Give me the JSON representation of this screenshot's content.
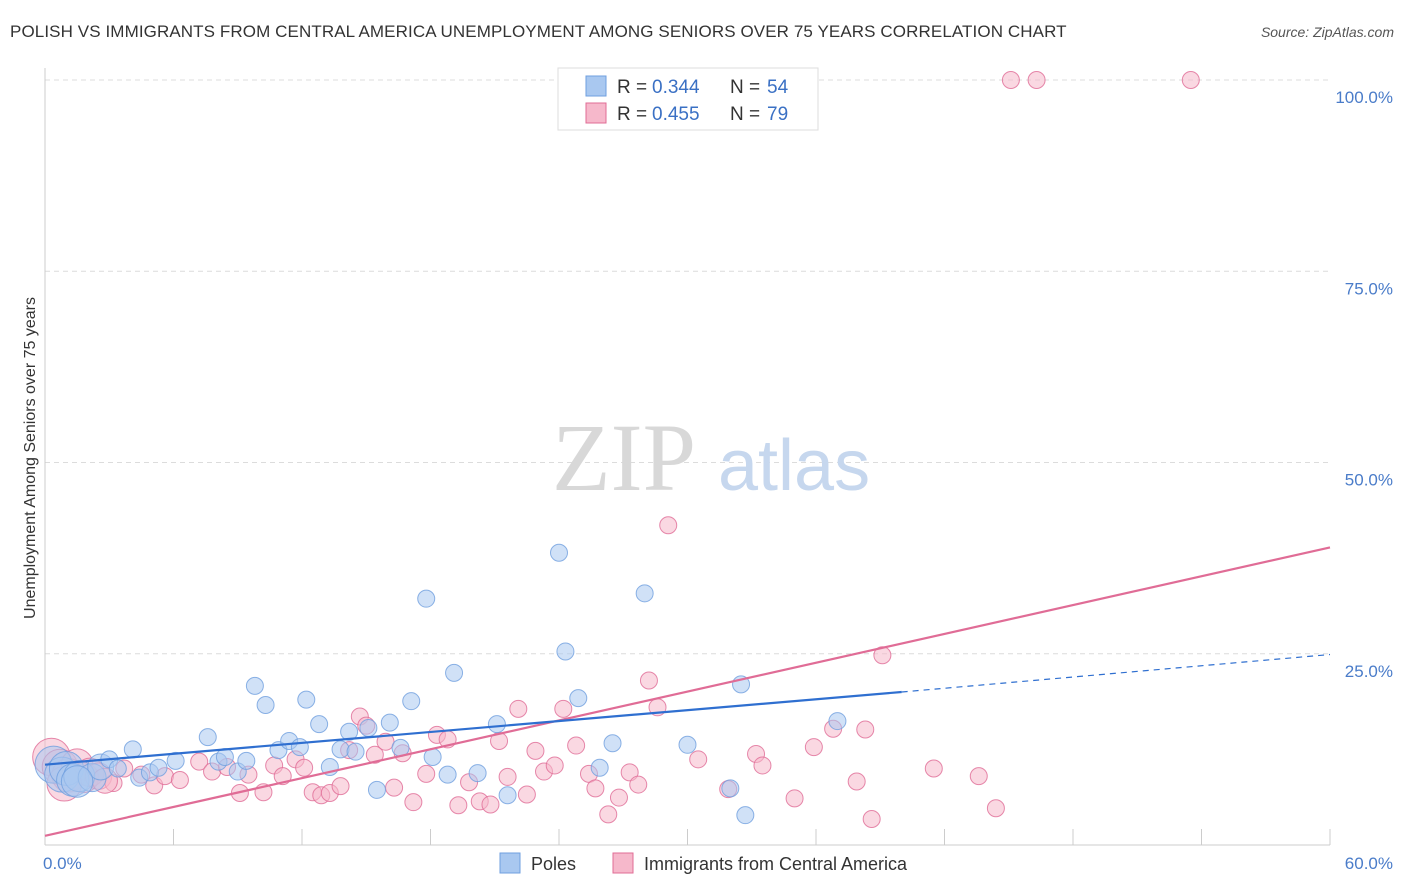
{
  "title": "POLISH VS IMMIGRANTS FROM CENTRAL AMERICA UNEMPLOYMENT AMONG SENIORS OVER 75 YEARS CORRELATION CHART",
  "source": "Source: ZipAtlas.com",
  "watermark": {
    "part1": "ZIP",
    "part2": "atlas"
  },
  "legend": {
    "rows": [
      {
        "r_label": "R = ",
        "r_value": "0.344",
        "n_label": "N = ",
        "n_value": "54",
        "color": "#a9c8f0"
      },
      {
        "r_label": "R = ",
        "r_value": "0.455",
        "n_label": "N = ",
        "n_value": "79",
        "color": "#f6b8cb"
      }
    ]
  },
  "chart_data": {
    "type": "scatter",
    "title": "POLISH VS IMMIGRANTS FROM CENTRAL AMERICA UNEMPLOYMENT AMONG SENIORS OVER 75 YEARS CORRELATION CHART",
    "xlabel": "",
    "ylabel": "Unemployment Among Seniors over 75 years",
    "xlim": [
      0,
      60
    ],
    "ylim": [
      0,
      100
    ],
    "x_tick_labels": [
      "0.0%",
      "60.0%"
    ],
    "y_ticks": [
      25,
      50,
      75,
      100
    ],
    "y_tick_labels": [
      "25.0%",
      "50.0%",
      "75.0%",
      "100.0%"
    ],
    "grid": "horizontal dashed",
    "legend_position": "bottom",
    "series": [
      {
        "name": "Poles",
        "color": "#6f9fdf",
        "fill": "#a9c8f0",
        "trend": {
          "x": [
            0,
            40
          ],
          "y": [
            10.5,
            20.0
          ],
          "dashed_extension": {
            "x": [
              40,
              60
            ],
            "y": [
              20.0,
              24.9
            ]
          }
        },
        "points": [
          [
            0.4,
            10.5
          ],
          [
            0.8,
            9.2
          ],
          [
            1.0,
            10.0
          ],
          [
            1.3,
            8.5
          ],
          [
            1.6,
            9.0
          ],
          [
            2.2,
            8.8
          ],
          [
            2.6,
            10.2
          ],
          [
            3.0,
            11.2
          ],
          [
            3.4,
            10.0
          ],
          [
            4.1,
            12.5
          ],
          [
            4.4,
            8.8
          ],
          [
            4.9,
            9.5
          ],
          [
            5.3,
            10.1
          ],
          [
            6.1,
            11.0
          ],
          [
            7.6,
            14.1
          ],
          [
            8.1,
            10.9
          ],
          [
            8.4,
            11.5
          ],
          [
            9.0,
            9.6
          ],
          [
            9.4,
            11.0
          ],
          [
            9.8,
            20.8
          ],
          [
            10.3,
            18.3
          ],
          [
            10.9,
            12.4
          ],
          [
            11.4,
            13.6
          ],
          [
            11.9,
            12.8
          ],
          [
            12.2,
            19.0
          ],
          [
            12.8,
            15.8
          ],
          [
            13.3,
            10.2
          ],
          [
            13.8,
            12.5
          ],
          [
            14.2,
            14.8
          ],
          [
            14.5,
            12.2
          ],
          [
            15.1,
            15.3
          ],
          [
            15.5,
            7.2
          ],
          [
            16.1,
            16.0
          ],
          [
            16.6,
            12.7
          ],
          [
            17.1,
            18.8
          ],
          [
            17.8,
            32.2
          ],
          [
            18.1,
            11.5
          ],
          [
            18.8,
            9.2
          ],
          [
            19.1,
            22.5
          ],
          [
            20.2,
            9.4
          ],
          [
            21.1,
            15.8
          ],
          [
            21.6,
            6.5
          ],
          [
            24.0,
            38.2
          ],
          [
            24.3,
            25.3
          ],
          [
            24.9,
            19.2
          ],
          [
            25.9,
            10.1
          ],
          [
            26.5,
            13.3
          ],
          [
            28.0,
            32.9
          ],
          [
            30.0,
            13.1
          ],
          [
            32.0,
            7.4
          ],
          [
            32.5,
            21.0
          ],
          [
            32.7,
            3.9
          ],
          [
            37.0,
            16.2
          ],
          [
            1.5,
            8.3
          ]
        ]
      },
      {
        "name": "Immigrants from Central America",
        "color": "#e06c96",
        "fill": "#f6b8cb",
        "trend": {
          "x": [
            0,
            60
          ],
          "y": [
            1.2,
            38.9
          ]
        },
        "points": [
          [
            0.3,
            11.5
          ],
          [
            0.7,
            10.2
          ],
          [
            1.1,
            9.1
          ],
          [
            1.5,
            10.5
          ],
          [
            1.8,
            8.8
          ],
          [
            2.1,
            9.5
          ],
          [
            2.5,
            9.0
          ],
          [
            3.2,
            8.1
          ],
          [
            3.7,
            10.0
          ],
          [
            4.5,
            9.2
          ],
          [
            5.1,
            7.8
          ],
          [
            5.6,
            9.0
          ],
          [
            6.3,
            8.5
          ],
          [
            7.2,
            10.9
          ],
          [
            7.8,
            9.6
          ],
          [
            8.5,
            10.2
          ],
          [
            9.1,
            6.8
          ],
          [
            9.5,
            9.2
          ],
          [
            10.2,
            6.9
          ],
          [
            10.7,
            10.4
          ],
          [
            11.1,
            9.0
          ],
          [
            11.7,
            11.2
          ],
          [
            12.1,
            10.1
          ],
          [
            12.5,
            6.9
          ],
          [
            12.9,
            6.5
          ],
          [
            13.3,
            6.8
          ],
          [
            13.8,
            7.7
          ],
          [
            14.2,
            12.4
          ],
          [
            14.7,
            16.8
          ],
          [
            15.0,
            15.6
          ],
          [
            15.4,
            11.8
          ],
          [
            15.9,
            13.5
          ],
          [
            16.3,
            7.5
          ],
          [
            16.7,
            12.0
          ],
          [
            17.2,
            5.6
          ],
          [
            17.8,
            9.3
          ],
          [
            18.3,
            14.4
          ],
          [
            18.8,
            13.8
          ],
          [
            19.3,
            5.2
          ],
          [
            19.8,
            8.2
          ],
          [
            20.3,
            5.7
          ],
          [
            20.8,
            5.3
          ],
          [
            21.2,
            13.6
          ],
          [
            21.6,
            8.9
          ],
          [
            22.1,
            17.8
          ],
          [
            22.5,
            6.6
          ],
          [
            22.9,
            12.3
          ],
          [
            23.3,
            9.6
          ],
          [
            23.8,
            10.4
          ],
          [
            24.2,
            17.8
          ],
          [
            24.8,
            13.0
          ],
          [
            25.4,
            9.3
          ],
          [
            25.7,
            7.4
          ],
          [
            26.3,
            4.0
          ],
          [
            26.8,
            6.2
          ],
          [
            27.3,
            9.5
          ],
          [
            27.7,
            7.9
          ],
          [
            28.2,
            21.5
          ],
          [
            28.6,
            18.0
          ],
          [
            29.1,
            41.8
          ],
          [
            30.5,
            11.2
          ],
          [
            31.9,
            7.3
          ],
          [
            33.2,
            11.9
          ],
          [
            33.5,
            10.4
          ],
          [
            35.0,
            6.1
          ],
          [
            35.9,
            12.8
          ],
          [
            36.8,
            15.2
          ],
          [
            37.9,
            8.3
          ],
          [
            38.3,
            15.1
          ],
          [
            38.6,
            3.4
          ],
          [
            39.1,
            24.8
          ],
          [
            41.5,
            10.0
          ],
          [
            43.6,
            9.0
          ],
          [
            44.4,
            4.8
          ],
          [
            45.1,
            100.0
          ],
          [
            46.3,
            100.0
          ],
          [
            53.5,
            100.0
          ],
          [
            2.8,
            8.4
          ],
          [
            0.9,
            8.0
          ]
        ]
      }
    ]
  }
}
